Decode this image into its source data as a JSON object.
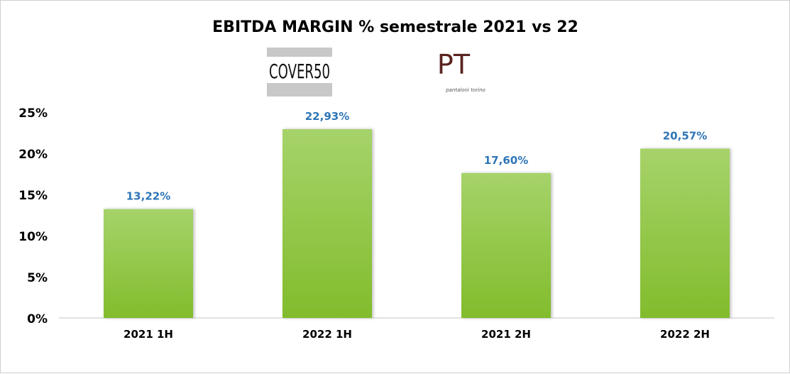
{
  "chart_data": {
    "type": "bar",
    "title": "EBITDA MARGIN % semestrale 2021 vs 22",
    "categories": [
      "2021 1H",
      "2022 1H",
      "2021 2H",
      "2022 2H"
    ],
    "values": [
      13.22,
      22.93,
      17.6,
      20.57
    ],
    "data_labels": [
      "13,22%",
      "22,93%",
      "17,60%",
      "20,57%"
    ],
    "xlabel": "",
    "ylabel": "",
    "ylim": [
      0,
      25
    ],
    "yticks": [
      0,
      5,
      10,
      15,
      20,
      25
    ],
    "ytick_labels": [
      "0%",
      "5%",
      "10%",
      "15%",
      "20%",
      "25%"
    ],
    "grid": false,
    "legend": "none",
    "colors": {
      "bar_top": "#a6d36a",
      "bar_bottom": "#82bc2c",
      "label": "#2e75b6",
      "axis": "#d9d9d9"
    }
  },
  "logos": {
    "cover50": "COVER50",
    "pt": "PT",
    "pt_sub": "pantaloni torino"
  }
}
